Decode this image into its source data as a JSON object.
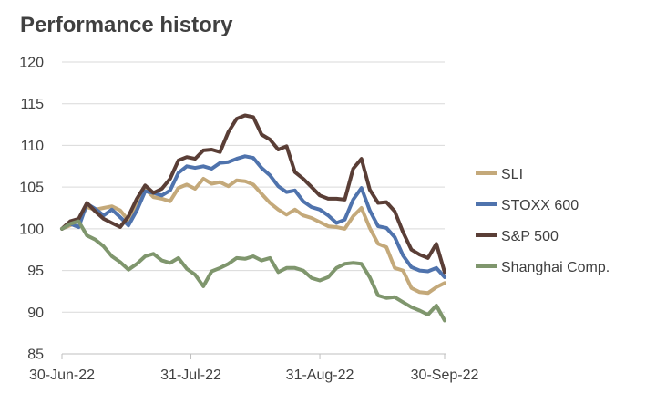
{
  "chart_title": "Performance history",
  "chart_data": {
    "type": "line",
    "title": "Performance history",
    "xlabel": "",
    "ylabel": "",
    "ylim": [
      85,
      120
    ],
    "yticks": [
      85,
      90,
      95,
      100,
      105,
      110,
      115,
      120
    ],
    "xlim": [
      "2022-06-30",
      "2022-09-30"
    ],
    "xtick_labels": [
      "30-Jun-22",
      "31-Jul-22",
      "31-Aug-22",
      "30-Sep-22"
    ],
    "xtick_dates": [
      "2022-06-30",
      "2022-07-31",
      "2022-08-31",
      "2022-09-30"
    ],
    "grid": "horizontal",
    "legend_position": "right",
    "series": [
      {
        "name": "SLI",
        "color": "#c4a97a",
        "points": [
          [
            "2022-06-30",
            100.0
          ],
          [
            "2022-07-02",
            100.4
          ],
          [
            "2022-07-04",
            101.0
          ],
          [
            "2022-07-06",
            102.6
          ],
          [
            "2022-07-08",
            102.3
          ],
          [
            "2022-07-10",
            102.5
          ],
          [
            "2022-07-12",
            102.7
          ],
          [
            "2022-07-14",
            102.2
          ],
          [
            "2022-07-16",
            101.0
          ],
          [
            "2022-07-18",
            102.7
          ],
          [
            "2022-07-20",
            104.8
          ],
          [
            "2022-07-22",
            103.8
          ],
          [
            "2022-07-24",
            103.6
          ],
          [
            "2022-07-26",
            103.3
          ],
          [
            "2022-07-28",
            104.9
          ],
          [
            "2022-07-30",
            105.3
          ],
          [
            "2022-08-01",
            104.8
          ],
          [
            "2022-08-03",
            106.0
          ],
          [
            "2022-08-05",
            105.4
          ],
          [
            "2022-08-07",
            105.6
          ],
          [
            "2022-08-09",
            105.1
          ],
          [
            "2022-08-11",
            105.8
          ],
          [
            "2022-08-13",
            105.7
          ],
          [
            "2022-08-15",
            105.3
          ],
          [
            "2022-08-17",
            104.2
          ],
          [
            "2022-08-19",
            103.1
          ],
          [
            "2022-08-21",
            102.3
          ],
          [
            "2022-08-23",
            101.7
          ],
          [
            "2022-08-25",
            102.3
          ],
          [
            "2022-08-27",
            101.6
          ],
          [
            "2022-08-29",
            101.3
          ],
          [
            "2022-08-31",
            100.8
          ],
          [
            "2022-09-02",
            100.3
          ],
          [
            "2022-09-04",
            100.2
          ],
          [
            "2022-09-06",
            100.0
          ],
          [
            "2022-09-08",
            101.5
          ],
          [
            "2022-09-10",
            102.5
          ],
          [
            "2022-09-12",
            100.1
          ],
          [
            "2022-09-14",
            98.2
          ],
          [
            "2022-09-16",
            97.8
          ],
          [
            "2022-09-18",
            95.3
          ],
          [
            "2022-09-20",
            95.0
          ],
          [
            "2022-09-22",
            92.9
          ],
          [
            "2022-09-24",
            92.4
          ],
          [
            "2022-09-26",
            92.3
          ],
          [
            "2022-09-28",
            93.0
          ],
          [
            "2022-09-30",
            93.5
          ]
        ]
      },
      {
        "name": "STOXX 600",
        "color": "#4f73ad",
        "points": [
          [
            "2022-06-30",
            100.0
          ],
          [
            "2022-07-02",
            100.6
          ],
          [
            "2022-07-04",
            100.2
          ],
          [
            "2022-07-06",
            103.0
          ],
          [
            "2022-07-08",
            102.4
          ],
          [
            "2022-07-10",
            101.6
          ],
          [
            "2022-07-12",
            102.3
          ],
          [
            "2022-07-14",
            101.4
          ],
          [
            "2022-07-16",
            100.4
          ],
          [
            "2022-07-18",
            102.2
          ],
          [
            "2022-07-20",
            104.5
          ],
          [
            "2022-07-22",
            104.3
          ],
          [
            "2022-07-24",
            104.0
          ],
          [
            "2022-07-26",
            104.6
          ],
          [
            "2022-07-28",
            106.7
          ],
          [
            "2022-07-30",
            107.5
          ],
          [
            "2022-08-01",
            107.3
          ],
          [
            "2022-08-03",
            107.5
          ],
          [
            "2022-08-05",
            107.2
          ],
          [
            "2022-08-07",
            107.9
          ],
          [
            "2022-08-09",
            108.0
          ],
          [
            "2022-08-11",
            108.4
          ],
          [
            "2022-08-13",
            108.7
          ],
          [
            "2022-08-15",
            108.5
          ],
          [
            "2022-08-17",
            107.3
          ],
          [
            "2022-08-19",
            106.4
          ],
          [
            "2022-08-21",
            105.1
          ],
          [
            "2022-08-23",
            104.4
          ],
          [
            "2022-08-25",
            104.6
          ],
          [
            "2022-08-27",
            103.3
          ],
          [
            "2022-08-29",
            102.6
          ],
          [
            "2022-08-31",
            102.3
          ],
          [
            "2022-09-02",
            101.6
          ],
          [
            "2022-09-04",
            100.7
          ],
          [
            "2022-09-06",
            101.1
          ],
          [
            "2022-09-08",
            103.5
          ],
          [
            "2022-09-10",
            104.9
          ],
          [
            "2022-09-12",
            102.2
          ],
          [
            "2022-09-14",
            100.3
          ],
          [
            "2022-09-16",
            100.1
          ],
          [
            "2022-09-18",
            99.0
          ],
          [
            "2022-09-20",
            96.8
          ],
          [
            "2022-09-22",
            95.4
          ],
          [
            "2022-09-24",
            95.0
          ],
          [
            "2022-09-26",
            94.9
          ],
          [
            "2022-09-28",
            95.3
          ],
          [
            "2022-09-30",
            94.2
          ]
        ]
      },
      {
        "name": "S&P 500",
        "color": "#5a3e36",
        "points": [
          [
            "2022-06-30",
            100.0
          ],
          [
            "2022-07-02",
            100.9
          ],
          [
            "2022-07-04",
            101.2
          ],
          [
            "2022-07-06",
            103.1
          ],
          [
            "2022-07-08",
            102.1
          ],
          [
            "2022-07-10",
            101.2
          ],
          [
            "2022-07-12",
            100.7
          ],
          [
            "2022-07-14",
            100.2
          ],
          [
            "2022-07-16",
            101.5
          ],
          [
            "2022-07-18",
            103.6
          ],
          [
            "2022-07-20",
            105.2
          ],
          [
            "2022-07-22",
            104.3
          ],
          [
            "2022-07-24",
            104.8
          ],
          [
            "2022-07-26",
            106.0
          ],
          [
            "2022-07-28",
            108.2
          ],
          [
            "2022-07-30",
            108.6
          ],
          [
            "2022-08-01",
            108.4
          ],
          [
            "2022-08-03",
            109.4
          ],
          [
            "2022-08-05",
            109.5
          ],
          [
            "2022-08-07",
            109.2
          ],
          [
            "2022-08-09",
            111.6
          ],
          [
            "2022-08-11",
            113.2
          ],
          [
            "2022-08-13",
            113.6
          ],
          [
            "2022-08-15",
            113.4
          ],
          [
            "2022-08-17",
            111.3
          ],
          [
            "2022-08-19",
            110.7
          ],
          [
            "2022-08-21",
            109.5
          ],
          [
            "2022-08-23",
            109.9
          ],
          [
            "2022-08-25",
            106.8
          ],
          [
            "2022-08-27",
            106.0
          ],
          [
            "2022-08-29",
            105.0
          ],
          [
            "2022-08-31",
            104.0
          ],
          [
            "2022-09-02",
            103.6
          ],
          [
            "2022-09-04",
            103.6
          ],
          [
            "2022-09-06",
            103.5
          ],
          [
            "2022-09-08",
            107.2
          ],
          [
            "2022-09-10",
            108.4
          ],
          [
            "2022-09-12",
            104.7
          ],
          [
            "2022-09-14",
            103.1
          ],
          [
            "2022-09-16",
            103.2
          ],
          [
            "2022-09-18",
            102.1
          ],
          [
            "2022-09-20",
            99.6
          ],
          [
            "2022-09-22",
            97.5
          ],
          [
            "2022-09-24",
            96.9
          ],
          [
            "2022-09-26",
            96.5
          ],
          [
            "2022-09-28",
            98.2
          ],
          [
            "2022-09-30",
            94.8
          ]
        ]
      },
      {
        "name": "Shanghai Comp.",
        "color": "#7f966d",
        "points": [
          [
            "2022-06-30",
            100.0
          ],
          [
            "2022-07-02",
            100.6
          ],
          [
            "2022-07-04",
            100.9
          ],
          [
            "2022-07-06",
            99.2
          ],
          [
            "2022-07-08",
            98.7
          ],
          [
            "2022-07-10",
            97.9
          ],
          [
            "2022-07-12",
            96.7
          ],
          [
            "2022-07-14",
            96.0
          ],
          [
            "2022-07-16",
            95.1
          ],
          [
            "2022-07-18",
            95.8
          ],
          [
            "2022-07-20",
            96.7
          ],
          [
            "2022-07-22",
            97.0
          ],
          [
            "2022-07-24",
            96.2
          ],
          [
            "2022-07-26",
            95.9
          ],
          [
            "2022-07-28",
            96.5
          ],
          [
            "2022-07-30",
            95.2
          ],
          [
            "2022-08-01",
            94.5
          ],
          [
            "2022-08-03",
            93.1
          ],
          [
            "2022-08-05",
            94.9
          ],
          [
            "2022-08-07",
            95.3
          ],
          [
            "2022-08-09",
            95.8
          ],
          [
            "2022-08-11",
            96.5
          ],
          [
            "2022-08-13",
            96.4
          ],
          [
            "2022-08-15",
            96.7
          ],
          [
            "2022-08-17",
            96.2
          ],
          [
            "2022-08-19",
            96.5
          ],
          [
            "2022-08-21",
            94.8
          ],
          [
            "2022-08-23",
            95.3
          ],
          [
            "2022-08-25",
            95.3
          ],
          [
            "2022-08-27",
            95.0
          ],
          [
            "2022-08-29",
            94.1
          ],
          [
            "2022-08-31",
            93.8
          ],
          [
            "2022-09-02",
            94.2
          ],
          [
            "2022-09-04",
            95.3
          ],
          [
            "2022-09-06",
            95.8
          ],
          [
            "2022-09-08",
            95.9
          ],
          [
            "2022-09-10",
            95.8
          ],
          [
            "2022-09-12",
            94.2
          ],
          [
            "2022-09-14",
            92.0
          ],
          [
            "2022-09-16",
            91.7
          ],
          [
            "2022-09-18",
            91.8
          ],
          [
            "2022-09-20",
            91.2
          ],
          [
            "2022-09-22",
            90.6
          ],
          [
            "2022-09-24",
            90.2
          ],
          [
            "2022-09-26",
            89.7
          ],
          [
            "2022-09-28",
            90.8
          ],
          [
            "2022-09-30",
            89.0
          ]
        ]
      }
    ]
  }
}
